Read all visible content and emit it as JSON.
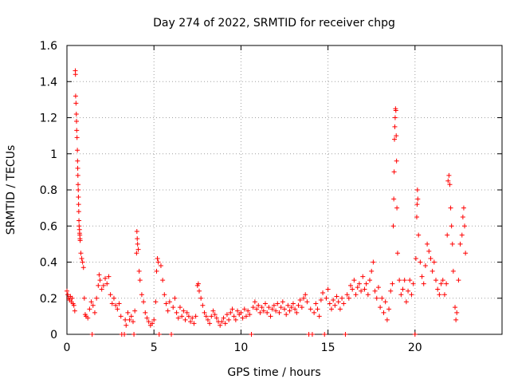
{
  "chart_data": {
    "type": "scatter",
    "title": "Day 274 of 2022, SRMTID for receiver chpg",
    "xlabel": "GPS time / hours",
    "ylabel": "SRMTID / TECUs",
    "xlim": [
      0,
      25
    ],
    "ylim": [
      0,
      1.6
    ],
    "grid": true,
    "marker": "+",
    "color": "#ff0000",
    "x_ticks": [
      0,
      5,
      10,
      15,
      20
    ],
    "x_tick_labels": [
      "0",
      "5",
      "10",
      "15",
      "20"
    ],
    "y_ticks": [
      0,
      0.2,
      0.4,
      0.6,
      0.8,
      1.0,
      1.2,
      1.4,
      1.6
    ],
    "y_tick_labels": [
      "0",
      "0.2",
      "0.4",
      "0.6",
      "0.8",
      "1",
      "1.2",
      "1.4",
      "1.6"
    ],
    "series": [
      {
        "name": "SRMTID",
        "points": [
          [
            0.0,
            0.24
          ],
          [
            0.05,
            0.22
          ],
          [
            0.1,
            0.2
          ],
          [
            0.15,
            0.19
          ],
          [
            0.2,
            0.21
          ],
          [
            0.25,
            0.18
          ],
          [
            0.3,
            0.2
          ],
          [
            0.35,
            0.17
          ],
          [
            0.4,
            0.16
          ],
          [
            0.45,
            0.13
          ],
          [
            0.48,
            1.46
          ],
          [
            0.49,
            1.44
          ],
          [
            0.5,
            1.32
          ],
          [
            0.52,
            1.28
          ],
          [
            0.54,
            1.22
          ],
          [
            0.55,
            1.18
          ],
          [
            0.56,
            1.13
          ],
          [
            0.58,
            1.09
          ],
          [
            0.6,
            1.02
          ],
          [
            0.61,
            0.96
          ],
          [
            0.62,
            0.92
          ],
          [
            0.63,
            0.88
          ],
          [
            0.64,
            0.83
          ],
          [
            0.65,
            0.8
          ],
          [
            0.66,
            0.76
          ],
          [
            0.67,
            0.72
          ],
          [
            0.68,
            0.68
          ],
          [
            0.69,
            0.63
          ],
          [
            0.7,
            0.6
          ],
          [
            0.72,
            0.58
          ],
          [
            0.73,
            0.56
          ],
          [
            0.74,
            0.55
          ],
          [
            0.75,
            0.53
          ],
          [
            0.76,
            0.52
          ],
          [
            0.8,
            0.45
          ],
          [
            0.85,
            0.42
          ],
          [
            0.9,
            0.4
          ],
          [
            0.95,
            0.37
          ],
          [
            1.0,
            0.2
          ],
          [
            1.05,
            0.11
          ],
          [
            1.1,
            0.1
          ],
          [
            1.2,
            0.09
          ],
          [
            1.3,
            0.14
          ],
          [
            1.4,
            0.18
          ],
          [
            1.45,
            0.0
          ],
          [
            1.5,
            0.16
          ],
          [
            1.6,
            0.12
          ],
          [
            1.7,
            0.2
          ],
          [
            1.8,
            0.27
          ],
          [
            1.85,
            0.33
          ],
          [
            1.9,
            0.3
          ],
          [
            2.0,
            0.25
          ],
          [
            2.1,
            0.27
          ],
          [
            2.2,
            0.31
          ],
          [
            2.3,
            0.28
          ],
          [
            2.4,
            0.32
          ],
          [
            2.5,
            0.22
          ],
          [
            2.6,
            0.17
          ],
          [
            2.7,
            0.2
          ],
          [
            2.8,
            0.16
          ],
          [
            2.9,
            0.14
          ],
          [
            3.0,
            0.17
          ],
          [
            3.1,
            0.1
          ],
          [
            3.15,
            0.0
          ],
          [
            3.3,
            0.0
          ],
          [
            3.35,
            0.08
          ],
          [
            3.4,
            0.05
          ],
          [
            3.5,
            0.12
          ],
          [
            3.6,
            0.08
          ],
          [
            3.7,
            0.1
          ],
          [
            3.8,
            0.07
          ],
          [
            3.85,
            0.0
          ],
          [
            3.9,
            0.13
          ],
          [
            4.0,
            0.45
          ],
          [
            4.02,
            0.57
          ],
          [
            4.04,
            0.53
          ],
          [
            4.06,
            0.5
          ],
          [
            4.1,
            0.47
          ],
          [
            4.15,
            0.35
          ],
          [
            4.2,
            0.3
          ],
          [
            4.3,
            0.22
          ],
          [
            4.4,
            0.18
          ],
          [
            4.5,
            0.12
          ],
          [
            4.6,
            0.09
          ],
          [
            4.7,
            0.07
          ],
          [
            4.8,
            0.05
          ],
          [
            4.9,
            0.06
          ],
          [
            5.0,
            0.08
          ],
          [
            5.1,
            0.18
          ],
          [
            5.15,
            0.35
          ],
          [
            5.2,
            0.42
          ],
          [
            5.25,
            0.4
          ],
          [
            5.3,
            0.0
          ],
          [
            5.4,
            0.38
          ],
          [
            5.5,
            0.3
          ],
          [
            5.6,
            0.22
          ],
          [
            5.7,
            0.17
          ],
          [
            5.8,
            0.13
          ],
          [
            5.9,
            0.18
          ],
          [
            6.0,
            0.0
          ],
          [
            6.1,
            0.15
          ],
          [
            6.2,
            0.2
          ],
          [
            6.3,
            0.12
          ],
          [
            6.4,
            0.09
          ],
          [
            6.5,
            0.15
          ],
          [
            6.6,
            0.1
          ],
          [
            6.7,
            0.13
          ],
          [
            6.8,
            0.08
          ],
          [
            6.9,
            0.12
          ],
          [
            7.0,
            0.1
          ],
          [
            7.1,
            0.07
          ],
          [
            7.2,
            0.09
          ],
          [
            7.3,
            0.06
          ],
          [
            7.4,
            0.1
          ],
          [
            7.5,
            0.27
          ],
          [
            7.55,
            0.28
          ],
          [
            7.6,
            0.24
          ],
          [
            7.7,
            0.2
          ],
          [
            7.8,
            0.16
          ],
          [
            7.9,
            0.12
          ],
          [
            8.0,
            0.1
          ],
          [
            8.1,
            0.08
          ],
          [
            8.2,
            0.06
          ],
          [
            8.3,
            0.1
          ],
          [
            8.4,
            0.13
          ],
          [
            8.5,
            0.11
          ],
          [
            8.6,
            0.09
          ],
          [
            8.7,
            0.07
          ],
          [
            8.8,
            0.05
          ],
          [
            8.9,
            0.07
          ],
          [
            9.0,
            0.09
          ],
          [
            9.1,
            0.06
          ],
          [
            9.2,
            0.11
          ],
          [
            9.3,
            0.08
          ],
          [
            9.4,
            0.12
          ],
          [
            9.5,
            0.14
          ],
          [
            9.6,
            0.1
          ],
          [
            9.7,
            0.08
          ],
          [
            9.8,
            0.13
          ],
          [
            9.9,
            0.11
          ],
          [
            10.0,
            0.12
          ],
          [
            10.1,
            0.09
          ],
          [
            10.2,
            0.14
          ],
          [
            10.3,
            0.1
          ],
          [
            10.4,
            0.13
          ],
          [
            10.5,
            0.11
          ],
          [
            10.6,
            0.0
          ],
          [
            10.7,
            0.15
          ],
          [
            10.8,
            0.18
          ],
          [
            10.9,
            0.14
          ],
          [
            11.0,
            0.16
          ],
          [
            11.1,
            0.12
          ],
          [
            11.2,
            0.15
          ],
          [
            11.3,
            0.13
          ],
          [
            11.4,
            0.17
          ],
          [
            11.5,
            0.12
          ],
          [
            11.6,
            0.15
          ],
          [
            11.7,
            0.1
          ],
          [
            11.8,
            0.14
          ],
          [
            11.9,
            0.16
          ],
          [
            12.0,
            0.13
          ],
          [
            12.1,
            0.17
          ],
          [
            12.2,
            0.12
          ],
          [
            12.3,
            0.15
          ],
          [
            12.4,
            0.18
          ],
          [
            12.5,
            0.14
          ],
          [
            12.6,
            0.11
          ],
          [
            12.7,
            0.16
          ],
          [
            12.8,
            0.13
          ],
          [
            12.9,
            0.15
          ],
          [
            13.0,
            0.17
          ],
          [
            13.1,
            0.14
          ],
          [
            13.2,
            0.12
          ],
          [
            13.3,
            0.16
          ],
          [
            13.4,
            0.19
          ],
          [
            13.5,
            0.15
          ],
          [
            13.6,
            0.2
          ],
          [
            13.7,
            0.22
          ],
          [
            13.8,
            0.18
          ],
          [
            13.9,
            0.0
          ],
          [
            14.0,
            0.14
          ],
          [
            14.1,
            0.0
          ],
          [
            14.2,
            0.12
          ],
          [
            14.3,
            0.17
          ],
          [
            14.4,
            0.14
          ],
          [
            14.5,
            0.1
          ],
          [
            14.6,
            0.19
          ],
          [
            14.7,
            0.23
          ],
          [
            14.8,
            0.0
          ],
          [
            14.9,
            0.2
          ],
          [
            15.0,
            0.25
          ],
          [
            15.1,
            0.17
          ],
          [
            15.2,
            0.14
          ],
          [
            15.3,
            0.19
          ],
          [
            15.4,
            0.16
          ],
          [
            15.5,
            0.21
          ],
          [
            15.6,
            0.18
          ],
          [
            15.7,
            0.14
          ],
          [
            15.8,
            0.2
          ],
          [
            15.9,
            0.17
          ],
          [
            16.0,
            0.0
          ],
          [
            16.1,
            0.22
          ],
          [
            16.2,
            0.2
          ],
          [
            16.3,
            0.27
          ],
          [
            16.4,
            0.25
          ],
          [
            16.5,
            0.3
          ],
          [
            16.6,
            0.22
          ],
          [
            16.7,
            0.26
          ],
          [
            16.8,
            0.28
          ],
          [
            16.9,
            0.24
          ],
          [
            17.0,
            0.32
          ],
          [
            17.1,
            0.25
          ],
          [
            17.2,
            0.28
          ],
          [
            17.3,
            0.22
          ],
          [
            17.4,
            0.3
          ],
          [
            17.5,
            0.35
          ],
          [
            17.6,
            0.4
          ],
          [
            17.7,
            0.24
          ],
          [
            17.8,
            0.2
          ],
          [
            17.9,
            0.26
          ],
          [
            18.0,
            0.15
          ],
          [
            18.1,
            0.2
          ],
          [
            18.2,
            0.12
          ],
          [
            18.3,
            0.18
          ],
          [
            18.4,
            0.08
          ],
          [
            18.5,
            0.14
          ],
          [
            18.6,
            0.24
          ],
          [
            18.7,
            0.28
          ],
          [
            18.75,
            0.6
          ],
          [
            18.78,
            0.75
          ],
          [
            18.8,
            0.9
          ],
          [
            18.82,
            1.08
          ],
          [
            18.84,
            1.15
          ],
          [
            18.86,
            1.2
          ],
          [
            18.88,
            1.25
          ],
          [
            18.9,
            1.24
          ],
          [
            18.92,
            1.1
          ],
          [
            18.94,
            0.96
          ],
          [
            18.96,
            0.7
          ],
          [
            19.0,
            0.45
          ],
          [
            19.1,
            0.3
          ],
          [
            19.2,
            0.22
          ],
          [
            19.3,
            0.25
          ],
          [
            19.4,
            0.3
          ],
          [
            19.5,
            0.18
          ],
          [
            19.6,
            0.24
          ],
          [
            19.7,
            0.3
          ],
          [
            19.8,
            0.22
          ],
          [
            19.9,
            0.28
          ],
          [
            20.0,
            0.0
          ],
          [
            20.05,
            0.42
          ],
          [
            20.1,
            0.65
          ],
          [
            20.12,
            0.72
          ],
          [
            20.14,
            0.8
          ],
          [
            20.16,
            0.75
          ],
          [
            20.2,
            0.55
          ],
          [
            20.3,
            0.4
          ],
          [
            20.4,
            0.32
          ],
          [
            20.5,
            0.28
          ],
          [
            20.6,
            0.38
          ],
          [
            20.7,
            0.5
          ],
          [
            20.8,
            0.46
          ],
          [
            20.9,
            0.42
          ],
          [
            21.0,
            0.35
          ],
          [
            21.1,
            0.4
          ],
          [
            21.2,
            0.3
          ],
          [
            21.3,
            0.25
          ],
          [
            21.4,
            0.22
          ],
          [
            21.5,
            0.28
          ],
          [
            21.6,
            0.3
          ],
          [
            21.7,
            0.22
          ],
          [
            21.8,
            0.28
          ],
          [
            21.85,
            0.55
          ],
          [
            21.9,
            0.85
          ],
          [
            21.95,
            0.88
          ],
          [
            22.0,
            0.83
          ],
          [
            22.05,
            0.7
          ],
          [
            22.1,
            0.6
          ],
          [
            22.15,
            0.5
          ],
          [
            22.2,
            0.35
          ],
          [
            22.3,
            0.15
          ],
          [
            22.35,
            0.08
          ],
          [
            22.4,
            0.12
          ],
          [
            22.5,
            0.3
          ],
          [
            22.6,
            0.5
          ],
          [
            22.7,
            0.55
          ],
          [
            22.75,
            0.65
          ],
          [
            22.8,
            0.7
          ],
          [
            22.85,
            0.6
          ],
          [
            22.9,
            0.45
          ]
        ]
      }
    ]
  }
}
